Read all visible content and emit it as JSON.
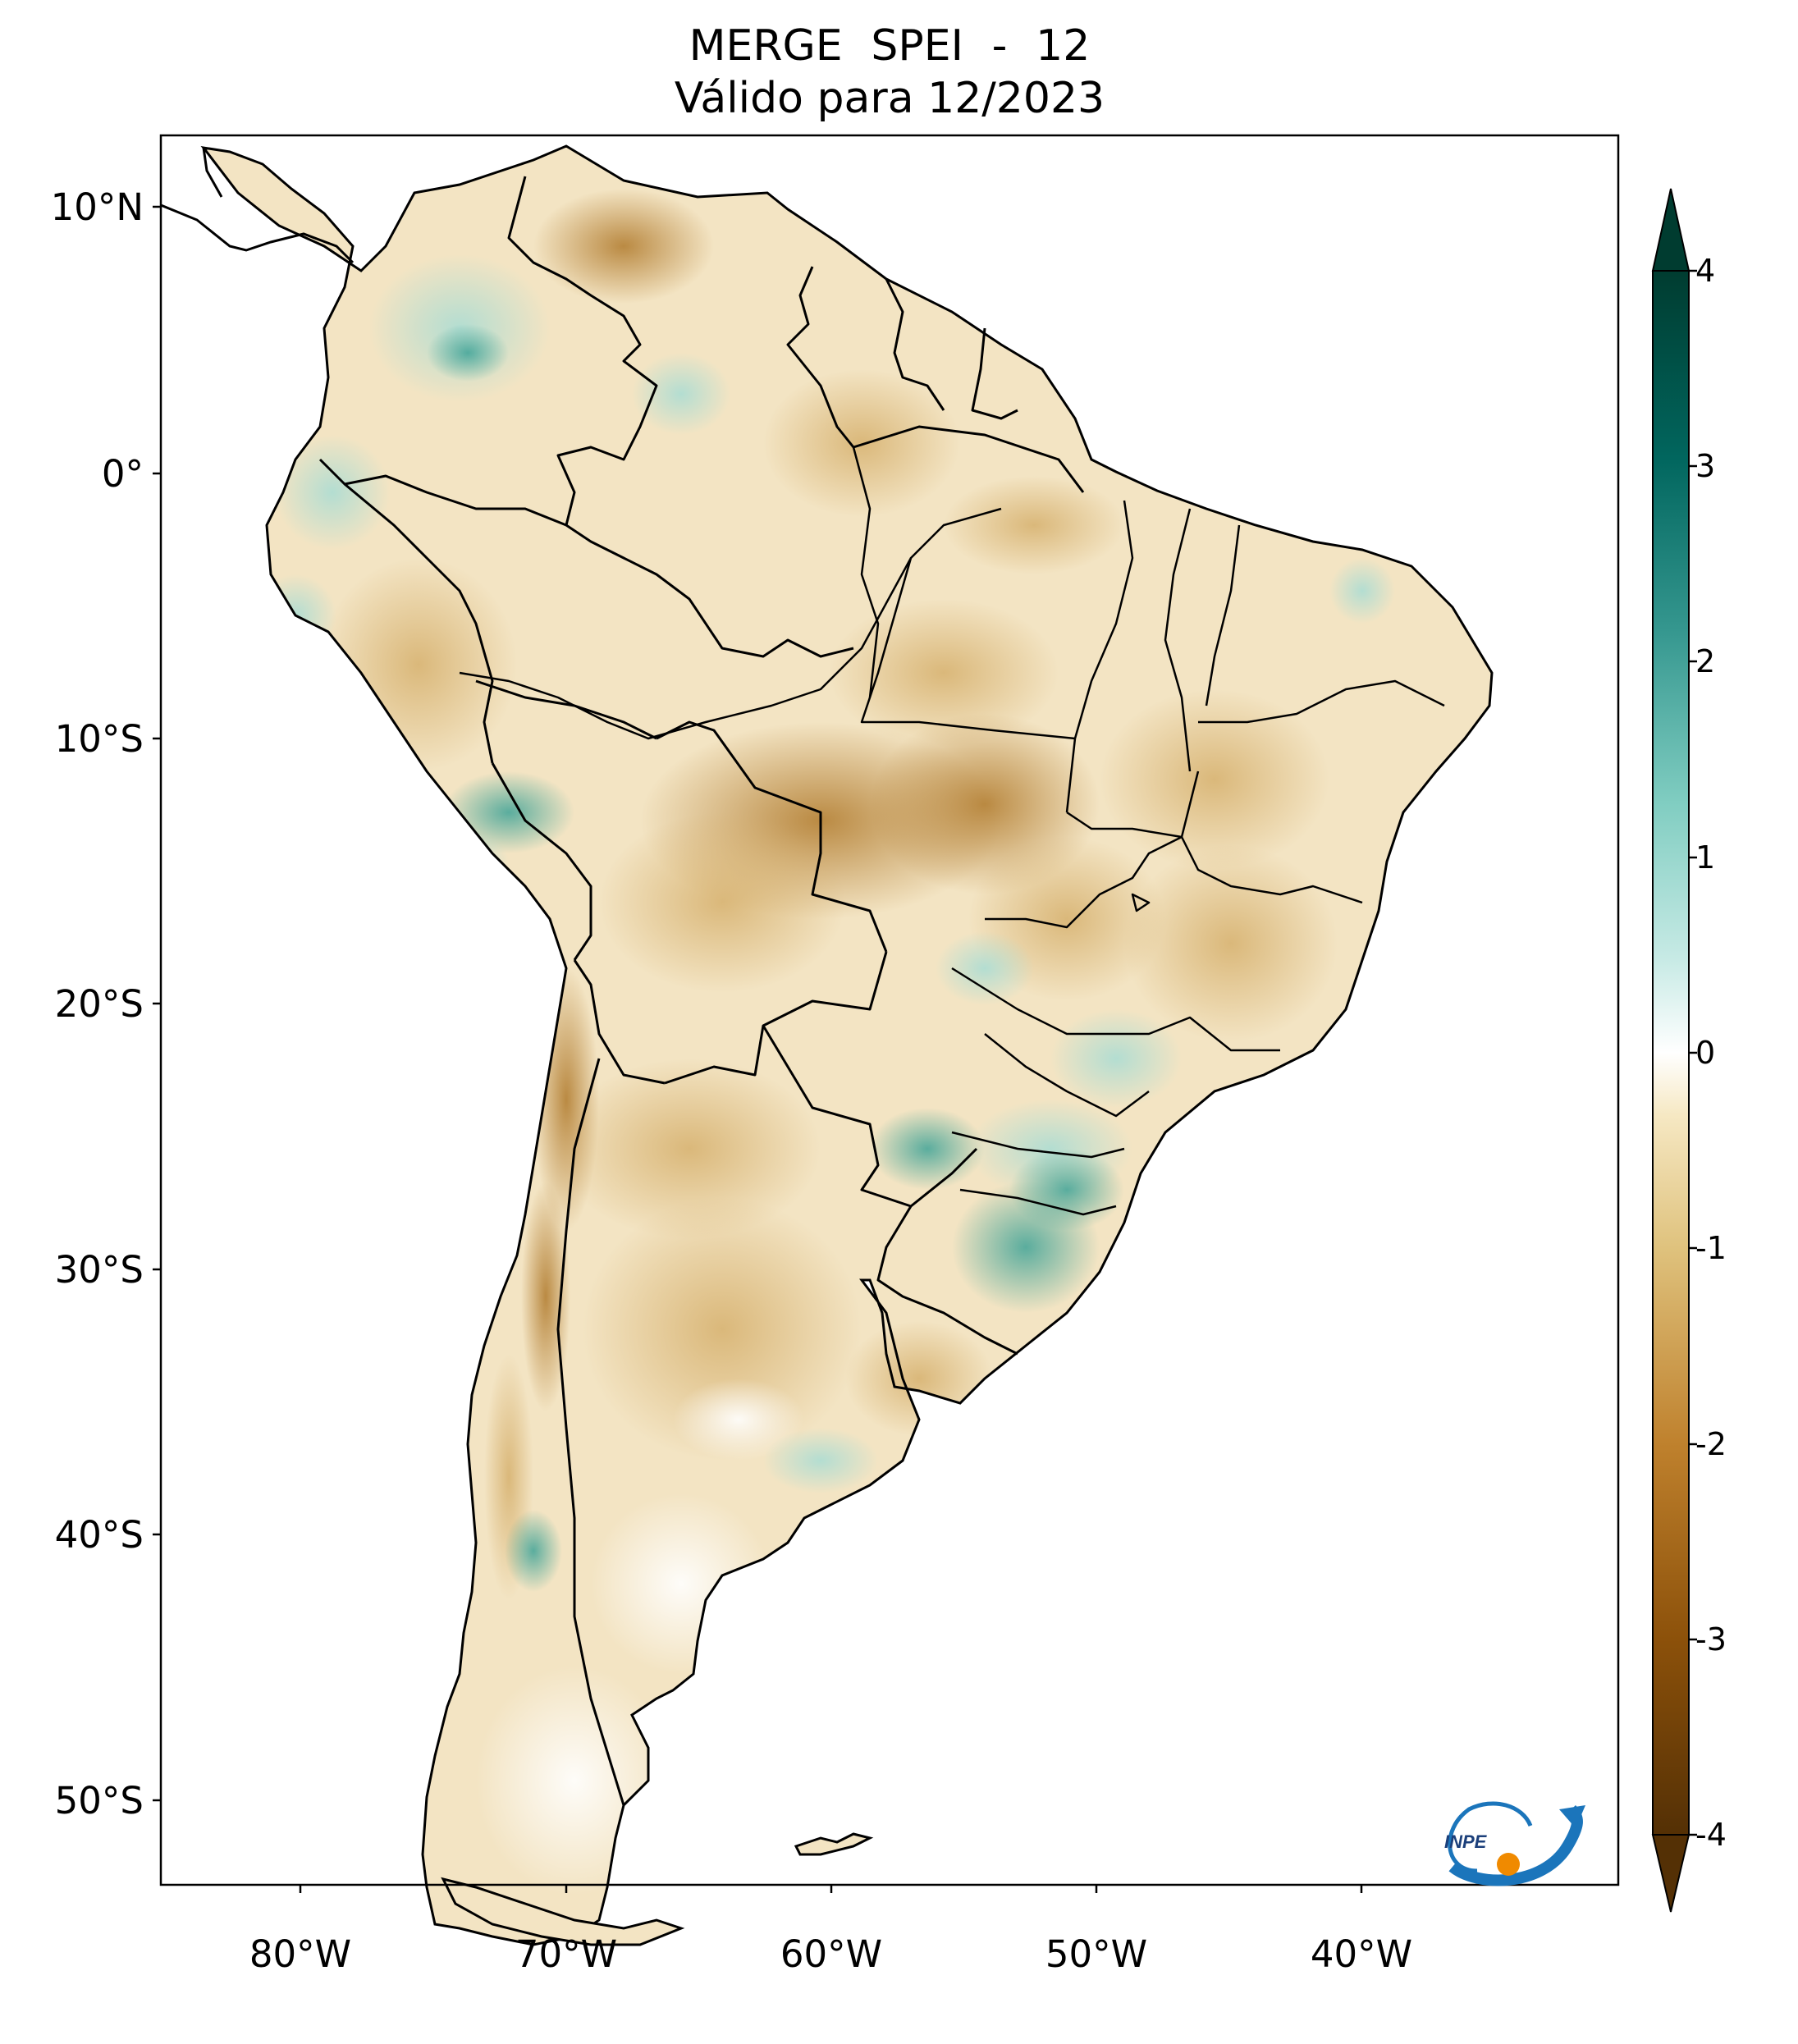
{
  "title": {
    "line1": "MERGE   SPEI - 12",
    "line2": "Válido para 12/2023"
  },
  "axes": {
    "lat_labels": [
      "10°N",
      "0°",
      "10°S",
      "20°S",
      "30°S",
      "40°S",
      "50°S"
    ],
    "lon_labels": [
      "80°W",
      "70°W",
      "60°W",
      "50°W",
      "40°W"
    ]
  },
  "colorbar": {
    "ticks": [
      "4",
      "3",
      "2",
      "1",
      "0",
      "-1",
      "-2",
      "-3",
      "-4"
    ],
    "min": -4,
    "max": 4,
    "colors": {
      "dry_extreme": "#543005",
      "dry_strong": "#8c510a",
      "dry_moderate": "#bf812d",
      "dry_mild": "#dfc27d",
      "dry_slight": "#f6e8c3",
      "neutral": "#ffffff",
      "wet_slight": "#c7eae5",
      "wet_mild": "#80cdc1",
      "wet_moderate": "#35978f",
      "wet_strong": "#01665e",
      "wet_extreme": "#003c30"
    }
  },
  "logo": {
    "text": "INPE",
    "icon": "inpe-logo-icon"
  },
  "map": {
    "region": "South America",
    "variable": "SPEI-12",
    "period": "12/2023"
  }
}
